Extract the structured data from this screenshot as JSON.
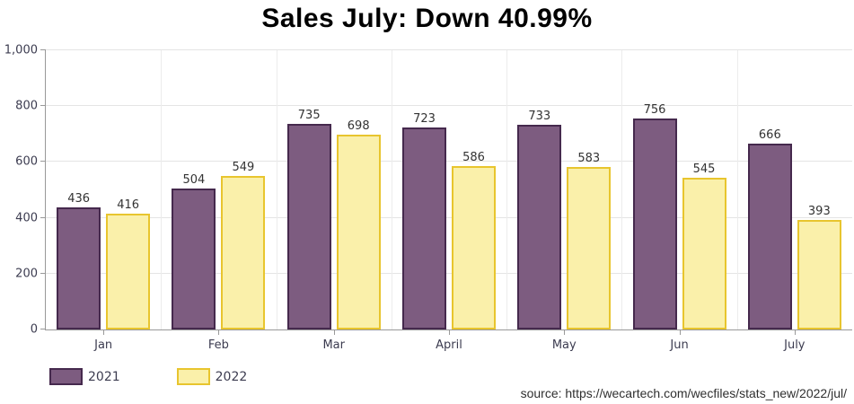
{
  "chart_data": {
    "type": "bar",
    "title": "Sales July: Down 40.99%",
    "categories": [
      "Jan",
      "Feb",
      "Mar",
      "April",
      "May",
      "Jun",
      "July"
    ],
    "series": [
      {
        "name": "2021",
        "color": "#7D5C80",
        "border_color": "#45294D",
        "values": [
          436,
          504,
          735,
          723,
          733,
          756,
          666
        ]
      },
      {
        "name": "2022",
        "color": "#FAF0AA",
        "border_color": "#E8C52E",
        "values": [
          416,
          549,
          698,
          586,
          583,
          545,
          393
        ]
      }
    ],
    "ylim": [
      0,
      1000
    ],
    "yticks": [
      {
        "value": 0,
        "label": "0"
      },
      {
        "value": 200,
        "label": "200"
      },
      {
        "value": 400,
        "label": "400"
      },
      {
        "value": 600,
        "label": "600"
      },
      {
        "value": 800,
        "label": "800"
      },
      {
        "value": 1000,
        "label": "1,000"
      }
    ],
    "grid": true,
    "value_labels": true,
    "legend_position": "bottom-left"
  },
  "footer": {
    "source_note": "source: https://wecartech.com/wecfiles/stats_new/2022/jul/"
  },
  "colors": {
    "axis": "#999999",
    "gridline": "#E4E4E4",
    "label_text": "#3C3C50",
    "title_text": "#000000"
  }
}
